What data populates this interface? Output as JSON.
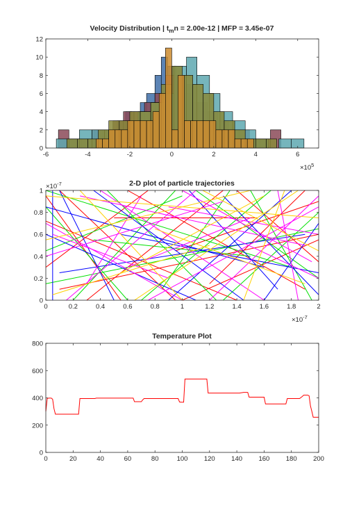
{
  "chart_data": [
    {
      "type": "bar",
      "title_main": "Velocity Distribution | t",
      "title_sub": "m",
      "title_rest": "n = 2.00e-12 | MFP = 3.45e-07",
      "x_multiplier": "×10",
      "x_exponent": "5",
      "xlim": [
        -6,
        7
      ],
      "ylim": [
        0,
        12
      ],
      "xticks": [
        -6,
        -4,
        -2,
        0,
        2,
        4,
        6
      ],
      "yticks": [
        0,
        2,
        4,
        6,
        8,
        10,
        12
      ],
      "grid": false,
      "series": [
        {
          "color": "#3f6fa8",
          "edges": [
            -5.0,
            -4.4,
            -3.7,
            -3.2,
            -2.6,
            -2.2,
            -1.9,
            -1.5,
            -1.2,
            -0.8,
            -0.5,
            -0.2,
            0.2,
            0.5,
            0.9,
            1.3,
            1.7,
            2.2,
            2.6,
            3.0,
            3.5,
            4.0
          ],
          "counts": [
            1,
            1,
            2,
            2,
            3,
            4,
            3,
            5,
            6,
            8,
            10,
            9,
            7,
            6,
            5,
            4,
            3,
            2,
            1,
            1,
            0
          ]
        },
        {
          "color": "#8b4a58",
          "edges": [
            -5.4,
            -4.9,
            -4.3,
            -3.8,
            -3.3,
            -2.8,
            -2.3,
            -1.8,
            -1.3,
            -0.8,
            -0.3,
            0.2,
            0.7,
            1.2,
            1.7,
            2.2,
            2.7,
            3.2,
            3.7,
            4.2,
            4.7,
            5.2
          ],
          "counts": [
            2,
            1,
            1,
            2,
            2,
            3,
            4,
            4,
            5,
            6,
            8,
            8,
            7,
            5,
            4,
            3,
            2,
            2,
            1,
            1,
            2
          ]
        },
        {
          "color": "#5ea8b0",
          "edges": [
            -5.5,
            -4.9,
            -4.4,
            -3.8,
            -3.2,
            -2.7,
            -2.1,
            -1.6,
            -1.0,
            -0.4,
            0.1,
            0.7,
            1.2,
            1.8,
            2.3,
            2.9,
            3.5,
            4.0,
            4.6,
            5.1,
            5.7,
            6.3
          ],
          "counts": [
            1,
            1,
            2,
            2,
            2,
            2,
            3,
            4,
            5,
            6,
            9,
            10,
            8,
            6,
            4,
            3,
            2,
            1,
            0,
            1,
            1
          ]
        },
        {
          "color": "#8a8a3a",
          "edges": [
            -5.0,
            -4.5,
            -4.0,
            -3.5,
            -3.0,
            -2.5,
            -2.0,
            -1.5,
            -1.0,
            -0.5,
            0.0,
            0.5,
            1.0,
            1.5,
            2.0,
            2.5,
            3.0,
            3.5,
            4.0,
            4.5,
            5.0
          ],
          "counts": [
            1,
            1,
            1,
            2,
            3,
            3,
            4,
            4,
            5,
            7,
            9,
            8,
            7,
            6,
            4,
            3,
            2,
            1,
            1,
            1
          ]
        },
        {
          "color": "#cc8c30",
          "edges": [
            -3.6,
            -3.3,
            -3.0,
            -2.7,
            -2.4,
            -2.1,
            -1.8,
            -1.5,
            -1.2,
            -0.9,
            -0.6,
            -0.3,
            0.0,
            0.3,
            0.6,
            0.9,
            1.2,
            1.5,
            1.8,
            2.1,
            2.4,
            2.7,
            3.0,
            3.3,
            3.6,
            3.9
          ],
          "counts": [
            1,
            1,
            2,
            2,
            2,
            3,
            3,
            3,
            3,
            4,
            6,
            11,
            2,
            8,
            3,
            3,
            3,
            3,
            3,
            2,
            2,
            2,
            1,
            1,
            1
          ]
        }
      ]
    },
    {
      "type": "line",
      "title": "2-D plot of particle trajectories",
      "x_multiplier": "×10",
      "x_exponent": "-7",
      "y_multiplier": "×10",
      "y_exponent": "-7",
      "xlim": [
        0,
        2
      ],
      "ylim": [
        0,
        1
      ],
      "xticks": [
        0,
        0.2,
        0.4,
        0.6,
        0.8,
        1,
        1.2,
        1.4,
        1.6,
        1.8,
        2
      ],
      "yticks": [
        0,
        0.2,
        0.4,
        0.6,
        0.8,
        1
      ],
      "grid": false,
      "series_colors": [
        "#ff0000",
        "#00e000",
        "#0000ff",
        "#ff00ff",
        "#ffd000"
      ],
      "segments": [
        [
          0.0,
          0.95,
          0.55,
          0.0,
          0
        ],
        [
          0.1,
          1.0,
          0.95,
          0.0,
          0
        ],
        [
          0.3,
          0.0,
          1.3,
          1.0,
          0
        ],
        [
          0.6,
          1.0,
          1.9,
          0.1,
          0
        ],
        [
          1.0,
          0.0,
          2.0,
          0.55,
          0
        ],
        [
          1.4,
          1.0,
          2.0,
          0.35,
          0
        ],
        [
          0.0,
          0.3,
          0.75,
          1.0,
          0
        ],
        [
          0.0,
          0.72,
          1.4,
          0.0,
          0
        ],
        [
          0.95,
          0.45,
          2.0,
          0.9,
          0
        ],
        [
          0.1,
          0.1,
          2.0,
          0.6,
          0
        ],
        [
          0.5,
          0.75,
          1.55,
          0.75,
          0
        ],
        [
          1.2,
          0.15,
          1.9,
          1.0,
          0
        ],
        [
          0.0,
          0.85,
          0.6,
          0.0,
          1
        ],
        [
          0.2,
          0.0,
          0.95,
          1.0,
          1
        ],
        [
          0.45,
          1.0,
          1.25,
          0.0,
          1
        ],
        [
          0.7,
          0.0,
          1.65,
          1.0,
          1
        ],
        [
          1.1,
          1.0,
          2.0,
          0.2,
          1
        ],
        [
          0.0,
          0.45,
          1.0,
          0.95,
          1
        ],
        [
          0.0,
          0.15,
          2.0,
          0.65,
          1
        ],
        [
          1.3,
          0.0,
          2.0,
          0.8,
          1
        ],
        [
          0.35,
          0.55,
          1.5,
          0.4,
          1
        ],
        [
          1.5,
          1.0,
          1.95,
          0.0,
          1
        ],
        [
          0.0,
          1.0,
          1.8,
          0.3,
          1
        ],
        [
          0.85,
          0.1,
          1.35,
          1.0,
          1
        ],
        [
          0.05,
          0.0,
          0.05,
          1.0,
          2
        ],
        [
          0.0,
          0.6,
          1.1,
          0.0,
          2
        ],
        [
          0.35,
          1.0,
          1.45,
          0.0,
          2
        ],
        [
          0.9,
          0.0,
          1.8,
          1.0,
          2
        ],
        [
          1.3,
          0.95,
          2.0,
          0.05,
          2
        ],
        [
          0.1,
          0.25,
          1.9,
          0.6,
          2
        ],
        [
          0.5,
          0.0,
          0.1,
          1.0,
          2
        ],
        [
          1.05,
          1.0,
          1.7,
          0.1,
          2
        ],
        [
          0.55,
          0.6,
          2.0,
          0.25,
          2
        ],
        [
          1.6,
          0.0,
          2.0,
          0.7,
          2
        ],
        [
          0.0,
          0.85,
          1.6,
          0.3,
          2
        ],
        [
          0.0,
          0.7,
          1.0,
          0.0,
          3
        ],
        [
          0.15,
          0.0,
          1.1,
          1.0,
          3
        ],
        [
          0.4,
          1.0,
          1.6,
          0.0,
          3
        ],
        [
          0.75,
          0.0,
          2.0,
          0.85,
          3
        ],
        [
          1.0,
          1.0,
          1.95,
          0.35,
          3
        ],
        [
          0.0,
          0.4,
          1.3,
          0.9,
          3
        ],
        [
          0.25,
          0.95,
          1.9,
          0.5,
          3
        ],
        [
          1.2,
          0.0,
          2.0,
          0.95,
          3
        ],
        [
          0.6,
          0.3,
          1.5,
          0.75,
          3
        ],
        [
          0.05,
          0.6,
          0.9,
          0.2,
          3
        ],
        [
          1.4,
          0.55,
          2.0,
          0.2,
          3
        ],
        [
          0.9,
          0.85,
          2.0,
          0.6,
          3
        ],
        [
          0.3,
          0.15,
          0.7,
          0.95,
          3
        ],
        [
          1.7,
          1.0,
          1.85,
          0.0,
          3
        ],
        [
          0.0,
          0.55,
          1.5,
          1.0,
          4
        ],
        [
          0.25,
          1.0,
          1.0,
          0.0,
          4
        ],
        [
          0.65,
          0.0,
          1.85,
          1.0,
          4
        ],
        [
          1.15,
          1.0,
          2.0,
          0.45,
          4
        ],
        [
          0.0,
          0.95,
          2.0,
          0.75,
          4
        ],
        [
          0.55,
          0.25,
          1.6,
          0.95,
          4
        ],
        [
          1.45,
          0.0,
          1.75,
          1.0,
          4
        ],
        [
          0.8,
          0.65,
          1.9,
          0.15,
          4
        ],
        [
          0.05,
          0.05,
          1.2,
          0.5,
          4
        ]
      ]
    },
    {
      "type": "line",
      "title": "Temperature Plot",
      "xlim": [
        0,
        200
      ],
      "ylim": [
        0,
        800
      ],
      "xticks": [
        0,
        20,
        40,
        60,
        80,
        100,
        120,
        140,
        160,
        180,
        200
      ],
      "yticks": [
        0,
        200,
        400,
        600,
        800
      ],
      "grid": false,
      "color": "#ff0000",
      "x": [
        0,
        1,
        2,
        3,
        4,
        5,
        6,
        7,
        8,
        24,
        25,
        26,
        36,
        37,
        64,
        65,
        70,
        71,
        72,
        97,
        98,
        99,
        101,
        102,
        103,
        104,
        110,
        118,
        119,
        120,
        121,
        142,
        145,
        146,
        148,
        149,
        160,
        161,
        175,
        176,
        177,
        186,
        188,
        189,
        192,
        193,
        194,
        195,
        196,
        200
      ],
      "y": [
        300,
        395,
        398,
        398,
        398,
        390,
        320,
        280,
        280,
        280,
        395,
        395,
        395,
        398,
        398,
        372,
        372,
        385,
        395,
        395,
        370,
        368,
        368,
        538,
        538,
        538,
        538,
        538,
        435,
        435,
        435,
        435,
        440,
        440,
        440,
        405,
        405,
        355,
        355,
        355,
        395,
        395,
        410,
        420,
        420,
        415,
        340,
        300,
        258,
        258
      ]
    }
  ]
}
